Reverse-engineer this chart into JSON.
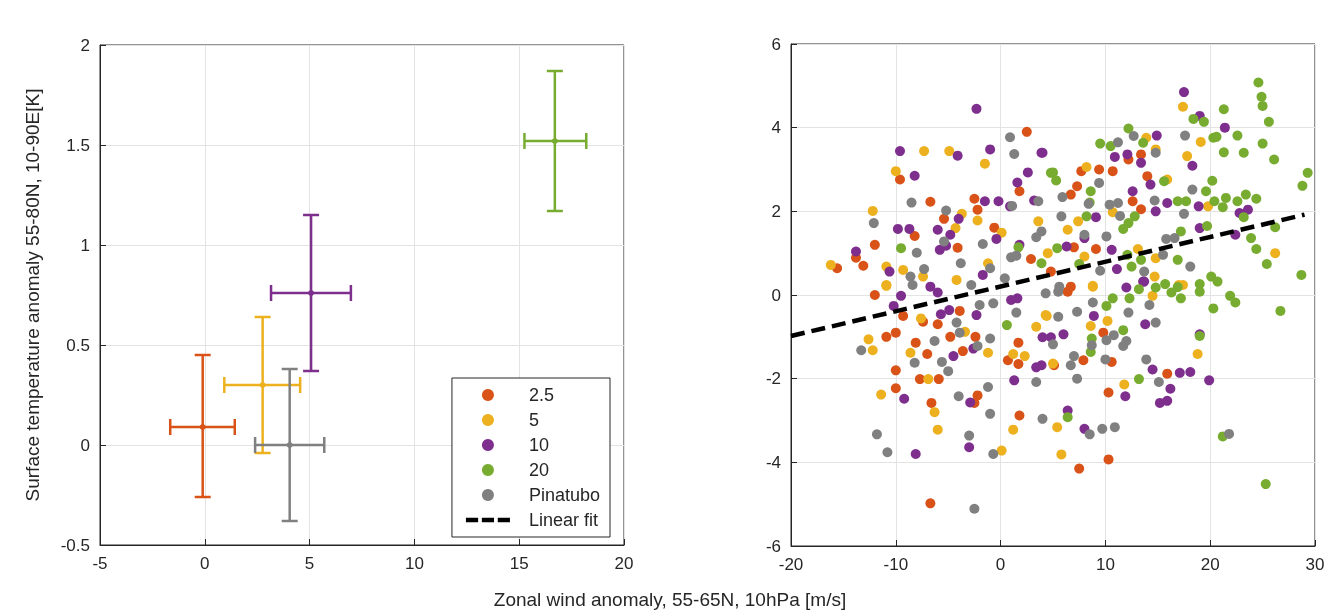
{
  "chart_data": [
    {
      "type": "scatter",
      "xlabel": "Zonal wind anomaly, 55-65N, 10hPa [m/s]",
      "ylabel": "Surface temperature anomaly 55-80N, 10-90E[K]",
      "xlim": [
        -5,
        20
      ],
      "xticks": [
        -5,
        0,
        5,
        10,
        15,
        20
      ],
      "ylim": [
        -0.5,
        2
      ],
      "yticks": [
        -0.5,
        0,
        0.5,
        1,
        1.5,
        2
      ],
      "grid": true,
      "legend": "bottom right",
      "marker": "none",
      "series": [
        {
          "name": "2.5",
          "color": "#d95319",
          "x": [
            -0.1
          ],
          "values": [
            0.09
          ],
          "errors": [
            [
              -0.26,
              0.45
            ]
          ],
          "xerrors": [
            [
              -1.65,
              1.43
            ]
          ]
        },
        {
          "name": "5",
          "color": "#edb120",
          "x": [
            2.76
          ],
          "values": [
            0.3
          ],
          "errors": [
            [
              -0.04,
              0.64
            ]
          ],
          "xerrors": [
            [
              0.93,
              4.55
            ]
          ]
        },
        {
          "name": "10",
          "color": "#7e2f8e",
          "x": [
            5.07
          ],
          "values": [
            0.76
          ],
          "errors": [
            [
              0.37,
              1.15
            ]
          ],
          "xerrors": [
            [
              3.16,
              6.97
            ]
          ]
        },
        {
          "name": "20",
          "color": "#77ac30",
          "x": [
            16.7
          ],
          "values": [
            1.52
          ],
          "errors": [
            [
              1.17,
              1.87
            ]
          ],
          "xerrors": [
            [
              15.25,
              18.2
            ]
          ]
        },
        {
          "name": "Pinatubo",
          "color": "#808080",
          "x": [
            4.05
          ],
          "values": [
            0
          ],
          "errors": [
            [
              -0.38,
              0.38
            ]
          ],
          "xerrors": [
            [
              2.4,
              5.7
            ]
          ]
        }
      ]
    },
    {
      "type": "scatter",
      "xlim": [
        -20,
        30
      ],
      "xticks": [
        -20,
        -10,
        0,
        10,
        20,
        30
      ],
      "ylim": [
        -6,
        6
      ],
      "yticks": [
        -6,
        -4,
        -2,
        0,
        2,
        4,
        6
      ],
      "grid": true,
      "marker": "circle",
      "series": [
        {
          "color": "#d95319",
          "x": [
            -15.6,
            -13.8,
            -13.1,
            -12.0,
            -9.6,
            -6.7,
            -5.4,
            -4.1,
            -2.5,
            -2.2,
            1.8,
            2.5,
            -8.2,
            2.9,
            -0.6,
            -12.0,
            -10.9,
            -10.0,
            -8.1,
            -10.0,
            -10.0,
            -7.7,
            -7.0,
            -6.6,
            -5.9,
            -6.0,
            -4.8,
            -3.9,
            -3.6,
            -2.4,
            -2.2,
            -2.5,
            -6.7,
            1.7,
            1.8,
            1.7,
            0.7,
            -9.3,
            -7.4,
            10.3,
            7.5,
            10.3,
            15.9,
            7.9,
            10.6,
            9.8,
            5.1,
            6.4,
            7.7,
            9.4,
            10.7,
            7.3,
            6.7,
            13.4,
            12.2,
            14.0,
            12.6,
            13.4,
            9.1,
            7.0,
            4.8,
            6.7
          ],
          "values": [
            0.64,
            0.89,
            0.7,
            1.2,
            2.76,
            2.23,
            1.82,
            1.13,
            2.3,
            2.04,
            2.48,
            3.9,
            1.41,
            0.86,
            1.61,
            0.0,
            -1.0,
            -0.9,
            -1.14,
            -1.8,
            -2.23,
            -2.01,
            -1.41,
            -2.58,
            -2.01,
            -0.7,
            -1.0,
            -0.38,
            -1.34,
            -1.0,
            -2.4,
            -2.58,
            -4.98,
            -1.14,
            -2.88,
            -1.65,
            -1.56,
            -0.5,
            -0.64,
            -2.33,
            -4.15,
            -3.93,
            -1.88,
            -1.56,
            -1.6,
            -0.9,
            -1.68,
            0.08,
            2.96,
            3.0,
            2.96,
            2.6,
            2.4,
            3.36,
            3.24,
            2.84,
            2.24,
            2.05,
            1.1,
            1.14,
            0.56,
            0.2
          ]
        },
        {
          "color": "#edb120",
          "x": [
            -16.2,
            -12.2,
            -10.0,
            -7.3,
            -4.9,
            -1.5,
            -3.7,
            -2.2,
            -4.3,
            -1.2,
            -10.9,
            -9.3,
            -7.4,
            0.1,
            3.6,
            4.5,
            -10.9,
            -12.6,
            -12.2,
            -11.4,
            -8.6,
            -6.9,
            -6.3,
            -6.0,
            -7.6,
            -10.9,
            -1.2,
            0.1,
            1.2,
            1.2,
            2.3,
            3.4,
            4.3,
            -4.2,
            -3.4,
            5.4,
            5.8,
            11.8,
            18.8,
            5.0,
            4.4,
            8.6,
            10.2,
            8.8,
            14.5,
            17.0,
            17.4,
            19.1,
            17.8,
            14.8,
            8.2,
            13.9,
            15.9,
            19.8,
            10.7,
            7.4,
            6.4,
            26.2,
            14.7,
            17.4,
            8.0,
            13.1,
            14.8,
            8.8
          ],
          "values": [
            0.72,
            2.01,
            2.96,
            3.44,
            3.44,
            3.14,
            1.94,
            1.78,
            1.6,
            0.76,
            0.68,
            0.6,
            0.44,
            1.49,
            1.76,
            1.0,
            0.24,
            -1.06,
            -1.32,
            -2.38,
            -1.38,
            -2.01,
            -2.8,
            -3.22,
            -0.56,
            0.22,
            -1.38,
            -3.72,
            -3.22,
            -1.41,
            -1.46,
            -0.76,
            -0.48,
            0.36,
            -0.88,
            -3.16,
            -3.81,
            -2.14,
            -1.41,
            -1.64,
            -0.5,
            -0.74,
            -0.62,
            0.2,
            -0.02,
            0.24,
            4.5,
            3.66,
            3.32,
            3.48,
            3.06,
            3.76,
            2.76,
            2.12,
            1.98,
            1.76,
            1.56,
            1.0,
            0.44,
            0.24,
            0.92,
            1.1,
            0.88,
            0.22
          ]
        },
        {
          "color": "#7e2f8e",
          "x": [
            -2.3,
            -9.6,
            -8.2,
            -4.1,
            -1.0,
            -9.8,
            -8.7,
            -6.0,
            -4.8,
            -4.0,
            -5.8,
            -5.2,
            -13.8,
            -10.6,
            -1.5,
            -0.2,
            0.9,
            1.6,
            2.6,
            3.2,
            3.9,
            -0.4,
            1.8,
            -1.7,
            -9.5,
            -10.2,
            -9.2,
            -8.1,
            -6.7,
            -6.0,
            -5.7,
            -4.9,
            -4.5,
            -2.6,
            -2.3,
            -2.9,
            -3.0,
            1.3,
            1.6,
            1.0,
            3.9,
            3.4,
            4.8,
            6.0,
            4.0,
            6.4,
            8.0,
            11.9,
            14.5,
            16.2,
            15.2,
            15.9,
            17.1,
            18.1,
            19.9,
            13.8,
            8.9,
            19.0,
            12.0,
            13.7,
            17.5,
            19.0,
            21.4,
            18.3,
            14.9,
            13.4,
            12.1,
            10.9,
            4.0,
            12.6,
            14.3,
            15.9,
            14.8,
            18.9,
            9.1,
            22.8,
            23.6,
            22.4,
            19.0,
            10.6,
            6.3,
            11.1,
            13.6,
            8.0
          ],
          "values": [
            4.45,
            3.44,
            2.85,
            3.33,
            3.48,
            1.58,
            1.58,
            1.56,
            1.44,
            1.82,
            1.08,
            1.18,
            1.04,
            0.56,
            2.24,
            2.24,
            2.12,
            2.69,
            2.93,
            2.26,
            3.4,
            1.34,
            1.2,
            0.48,
            -0.02,
            -0.26,
            -2.48,
            -3.8,
            0.2,
            0.06,
            -0.46,
            -0.36,
            -1.46,
            -1.28,
            -0.48,
            -2.57,
            -3.64,
            -2.04,
            -0.08,
            -0.12,
            -1.68,
            -1.73,
            -1.01,
            -0.94,
            -1.01,
            -2.76,
            -3.2,
            -2.42,
            -1.78,
            -2.24,
            -2.58,
            -2.53,
            -1.86,
            -1.84,
            -2.04,
            -0.7,
            -0.5,
            -0.94,
            0.18,
            0.32,
            4.85,
            4.28,
            4.0,
            3.09,
            3.81,
            3.16,
            3.36,
            3.3,
            3.4,
            2.48,
            2.64,
            2.2,
            2.0,
            2.12,
            1.86,
            1.96,
            2.04,
            1.44,
            1.6,
            1.08,
            1.16,
            0.62,
            0.32,
            1.36
          ]
        },
        {
          "color": "#77ac30",
          "x": [
            -9.5,
            1.7,
            3.9,
            4.8,
            0.6,
            24.6,
            24.9,
            25.0,
            25.6,
            21.3,
            18.4,
            19.4,
            12.2,
            13.6,
            9.5,
            10.5,
            20.3,
            20.6,
            22.6,
            25.0,
            21.3,
            23.2,
            26.1,
            29.3,
            28.8,
            5.0,
            5.3,
            8.6,
            20.2,
            19.6,
            15.6,
            8.5,
            8.2,
            16.9,
            17.7,
            20.4,
            21.5,
            22.6,
            23.4,
            24.4,
            21.2,
            23.2,
            12.8,
            12.2,
            11.7,
            17.2,
            19.7,
            26.2,
            23.9,
            24.4,
            25.4,
            28.7,
            5.4,
            12.1,
            13.4,
            12.5,
            16.9,
            7.5,
            20.1,
            20.7,
            19.0,
            15.7,
            16.9,
            10.1,
            10.7,
            12.3,
            13.2,
            14.8,
            16.3,
            17.2,
            19.0,
            20.3,
            21.9,
            22.4,
            26.7,
            8.7,
            8.6,
            11.7,
            19.0,
            13.2,
            6.4,
            21.2,
            25.3
          ],
          "values": [
            1.12,
            1.14,
            0.76,
            2.92,
            -0.72,
            5.08,
            4.74,
            4.52,
            4.14,
            4.44,
            4.21,
            4.14,
            3.98,
            3.64,
            3.62,
            3.56,
            3.76,
            3.78,
            3.81,
            3.62,
            3.41,
            3.4,
            3.24,
            2.92,
            2.61,
            2.93,
            2.74,
            2.48,
            2.73,
            2.48,
            2.72,
            2.21,
            1.88,
            2.24,
            2.24,
            2.24,
            2.32,
            2.24,
            2.4,
            2.3,
            2.1,
            1.86,
            1.88,
            1.72,
            1.58,
            1.52,
            1.65,
            1.62,
            1.36,
            1.1,
            0.74,
            0.48,
            1.12,
            0.96,
            0.84,
            0.68,
            0.84,
            0.74,
            0.44,
            0.32,
            0.26,
            0.26,
            0.19,
            -0.26,
            -0.08,
            -0.08,
            0.14,
            0.18,
            0.06,
            -0.08,
            0.08,
            -0.32,
            -0.02,
            -0.18,
            -0.38,
            -1.04,
            -1.36,
            -0.84,
            -0.98,
            -2.01,
            -2.92,
            -3.38,
            -4.52
          ]
        },
        {
          "color": "#808080",
          "x": [
            0.9,
            1.3,
            -8.5,
            -5.2,
            -12.1,
            -8.0,
            -5.4,
            -3.8,
            -1.7,
            1.1,
            3.6,
            1.0,
            1.5,
            -1.0,
            -7.3,
            -8.6,
            -2.8,
            0.4,
            3.4,
            3.9,
            -13.3,
            -11.8,
            -10.8,
            -8.2,
            -6.3,
            -5.6,
            -5.0,
            -4.2,
            -3.9,
            -4.0,
            -2.2,
            -1.2,
            -1.0,
            -0.7,
            -3.0,
            -2.5,
            -2.0,
            -0.7,
            1.5,
            -1.0,
            3.4,
            4.0,
            -8.4,
            8.5,
            9.7,
            10.9,
            21.8,
            7.3,
            6.7,
            7.0,
            10.0,
            13.9,
            15.1,
            5.0,
            10.1,
            10.8,
            11.7,
            12.0,
            8.7,
            14.8,
            12.2,
            8.8,
            7.3,
            5.5,
            14.2,
            5.5,
            4.3,
            17.6,
            14.8,
            12.7,
            11.2,
            9.4,
            5.9,
            8.4,
            10.4,
            11.2,
            14.7,
            18.3,
            17.5,
            11.4,
            5.8,
            8.0,
            10.1,
            15.8,
            16.6,
            15.5,
            9.5,
            18.1,
            5.6,
            13.7
          ],
          "values": [
            3.77,
            3.37,
            2.21,
            2.02,
            1.72,
            1.01,
            1.28,
            0.76,
            1.22,
            2.13,
            2.24,
            0.9,
            0.94,
            0.64,
            0.62,
            0.44,
            0.24,
            0.4,
            1.38,
            1.52,
            -1.32,
            -3.33,
            -3.76,
            -1.62,
            -1.1,
            -1.6,
            -1.82,
            -0.66,
            -0.9,
            -2.42,
            -1.22,
            -2.2,
            -2.84,
            -3.8,
            -3.36,
            -5.11,
            -0.24,
            -0.2,
            -0.42,
            -1.04,
            -2.08,
            -2.96,
            0.24,
            -3.33,
            -3.2,
            -3.16,
            -3.32,
            -2.0,
            -1.68,
            -1.46,
            -1.54,
            -1.54,
            -2.08,
            -1.18,
            -1.08,
            -0.96,
            -1.22,
            -1.1,
            -1.2,
            -0.66,
            -0.42,
            -0.18,
            -0.4,
            0.08,
            -0.24,
            -0.52,
            0.04,
            3.81,
            3.4,
            3.8,
            3.65,
            2.68,
            2.34,
            2.18,
            2.16,
            2.2,
            2.26,
            2.52,
            1.94,
            1.89,
            1.88,
            1.44,
            1.4,
            1.34,
            1.36,
            0.96,
            0.58,
            0.68,
            0.2,
            0.56
          ]
        },
        {
          "name": "Linear fit",
          "type": "line",
          "color": "#000000",
          "line_style": "dashed",
          "marker": "none",
          "x": [
            -20,
            29
          ],
          "values": [
            -0.98,
            1.92
          ]
        }
      ]
    }
  ]
}
